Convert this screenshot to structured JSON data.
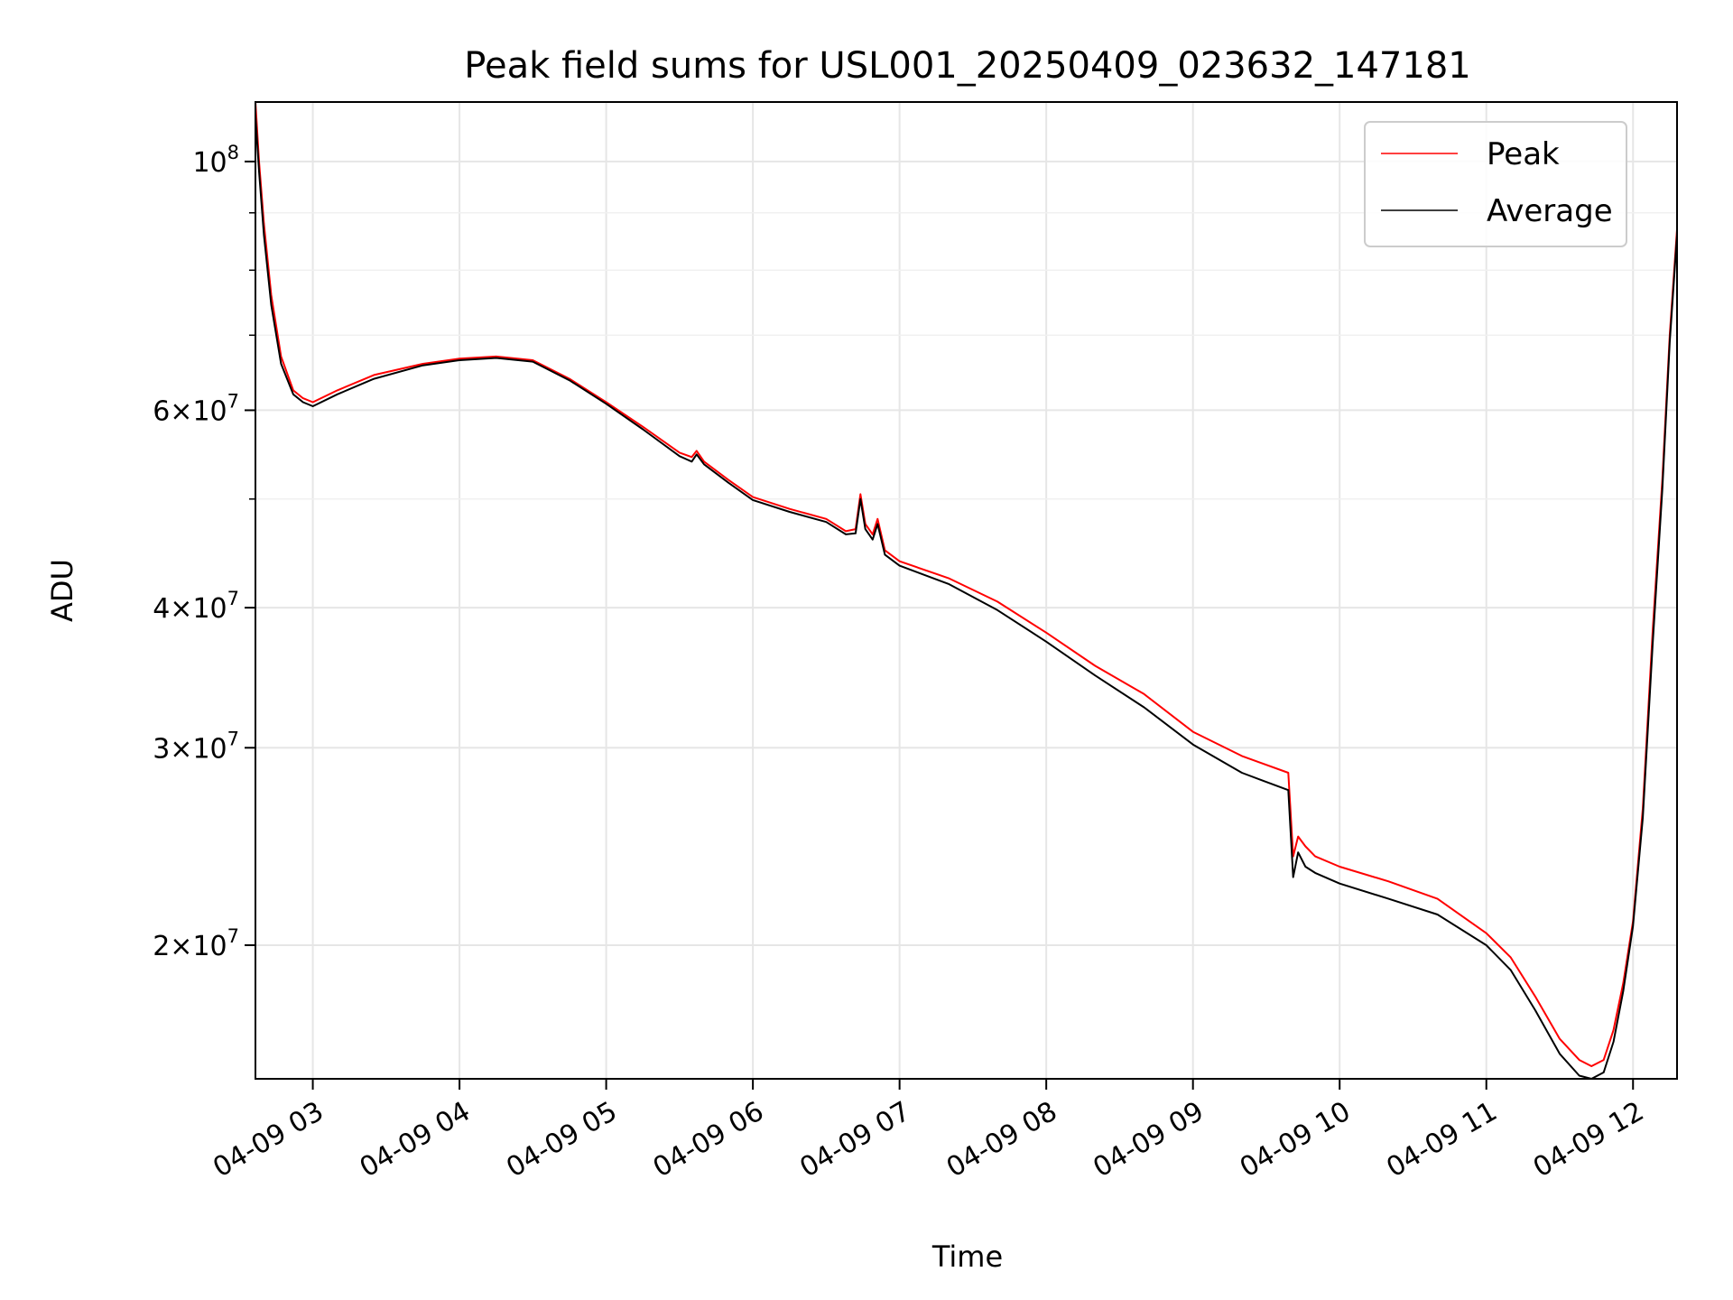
{
  "chart_data": {
    "type": "line",
    "title": "Peak field sums for USL001_20250409_023632_147181",
    "xlabel": "Time",
    "ylabel": "ADU",
    "yscale": "log",
    "xlim": [
      "2025-04-09T02:36:32",
      "2025-04-09T12:18:00"
    ],
    "ylim": [
      15200000,
      113000000
    ],
    "grid": true,
    "legend_position": "top-right",
    "x_tick_labels": [
      "04-09 03",
      "04-09 04",
      "04-09 05",
      "04-09 06",
      "04-09 07",
      "04-09 08",
      "04-09 09",
      "04-09 10",
      "04-09 11",
      "04-09 12"
    ],
    "x_ticks": [
      "2025-04-09T03:00",
      "2025-04-09T04:00",
      "2025-04-09T05:00",
      "2025-04-09T06:00",
      "2025-04-09T07:00",
      "2025-04-09T08:00",
      "2025-04-09T09:00",
      "2025-04-09T10:00",
      "2025-04-09T11:00",
      "2025-04-09T12:00"
    ],
    "y_ticks": [
      {
        "value": 100000000,
        "mantissa": "",
        "exponent": "8"
      },
      {
        "value": 60000000,
        "mantissa": "6",
        "exponent": "7"
      },
      {
        "value": 40000000,
        "mantissa": "4",
        "exponent": "7"
      },
      {
        "value": 30000000,
        "mantissa": "3",
        "exponent": "7"
      },
      {
        "value": 20000000,
        "mantissa": "2",
        "exponent": "7"
      }
    ],
    "y_minor_ticks": [
      90000000,
      80000000,
      70000000,
      50000000
    ],
    "series": [
      {
        "name": "Peak",
        "color": "#ff0000",
        "x": [
          "2025-04-09T02:36:32",
          "2025-04-09T02:38:00",
          "2025-04-09T02:40:00",
          "2025-04-09T02:43:00",
          "2025-04-09T02:47:00",
          "2025-04-09T02:52:00",
          "2025-04-09T02:56:00",
          "2025-04-09T03:00:00",
          "2025-04-09T03:10:00",
          "2025-04-09T03:25:00",
          "2025-04-09T03:45:00",
          "2025-04-09T04:00:00",
          "2025-04-09T04:15:00",
          "2025-04-09T04:30:00",
          "2025-04-09T04:45:00",
          "2025-04-09T05:00:00",
          "2025-04-09T05:15:00",
          "2025-04-09T05:30:00",
          "2025-04-09T05:35:00",
          "2025-04-09T05:37:00",
          "2025-04-09T05:40:00",
          "2025-04-09T05:50:00",
          "2025-04-09T06:00:00",
          "2025-04-09T06:15:00",
          "2025-04-09T06:30:00",
          "2025-04-09T06:38:00",
          "2025-04-09T06:42:00",
          "2025-04-09T06:44:00",
          "2025-04-09T06:46:00",
          "2025-04-09T06:49:00",
          "2025-04-09T06:51:00",
          "2025-04-09T06:54:00",
          "2025-04-09T07:00:00",
          "2025-04-09T07:20:00",
          "2025-04-09T07:40:00",
          "2025-04-09T08:00:00",
          "2025-04-09T08:20:00",
          "2025-04-09T08:40:00",
          "2025-04-09T09:00:00",
          "2025-04-09T09:20:00",
          "2025-04-09T09:39:00",
          "2025-04-09T09:41:00",
          "2025-04-09T09:43:00",
          "2025-04-09T09:46:00",
          "2025-04-09T09:50:00",
          "2025-04-09T10:00:00",
          "2025-04-09T10:20:00",
          "2025-04-09T10:40:00",
          "2025-04-09T11:00:00",
          "2025-04-09T11:10:00",
          "2025-04-09T11:20:00",
          "2025-04-09T11:30:00",
          "2025-04-09T11:38:00",
          "2025-04-09T11:43:00",
          "2025-04-09T11:48:00",
          "2025-04-09T11:52:00",
          "2025-04-09T11:56:00",
          "2025-04-09T12:00:00",
          "2025-04-09T12:04:00",
          "2025-04-09T12:08:00",
          "2025-04-09T12:12:00",
          "2025-04-09T12:15:00",
          "2025-04-09T12:18:00"
        ],
        "y": [
          113000000,
          100000000,
          88000000,
          76000000,
          67000000,
          62500000,
          61500000,
          61000000,
          62500000,
          64500000,
          66000000,
          66700000,
          67000000,
          66500000,
          64000000,
          61000000,
          58000000,
          55000000,
          54500000,
          55200000,
          54000000,
          52000000,
          50200000,
          49000000,
          48000000,
          46800000,
          47000000,
          50500000,
          47500000,
          46500000,
          48000000,
          45000000,
          44000000,
          42500000,
          40500000,
          38000000,
          35500000,
          33500000,
          31000000,
          29500000,
          28500000,
          24000000,
          25000000,
          24500000,
          24000000,
          23500000,
          22800000,
          22000000,
          20500000,
          19500000,
          18000000,
          16500000,
          15800000,
          15600000,
          15800000,
          16800000,
          18500000,
          21000000,
          26500000,
          38000000,
          52000000,
          70000000,
          87000000
        ]
      },
      {
        "name": "Average",
        "color": "#000000",
        "x": [
          "2025-04-09T02:36:32",
          "2025-04-09T02:38:00",
          "2025-04-09T02:40:00",
          "2025-04-09T02:43:00",
          "2025-04-09T02:47:00",
          "2025-04-09T02:52:00",
          "2025-04-09T02:56:00",
          "2025-04-09T03:00:00",
          "2025-04-09T03:10:00",
          "2025-04-09T03:25:00",
          "2025-04-09T03:45:00",
          "2025-04-09T04:00:00",
          "2025-04-09T04:15:00",
          "2025-04-09T04:30:00",
          "2025-04-09T04:45:00",
          "2025-04-09T05:00:00",
          "2025-04-09T05:15:00",
          "2025-04-09T05:30:00",
          "2025-04-09T05:35:00",
          "2025-04-09T05:37:00",
          "2025-04-09T05:40:00",
          "2025-04-09T05:50:00",
          "2025-04-09T06:00:00",
          "2025-04-09T06:15:00",
          "2025-04-09T06:30:00",
          "2025-04-09T06:38:00",
          "2025-04-09T06:42:00",
          "2025-04-09T06:44:00",
          "2025-04-09T06:46:00",
          "2025-04-09T06:49:00",
          "2025-04-09T06:51:00",
          "2025-04-09T06:54:00",
          "2025-04-09T07:00:00",
          "2025-04-09T07:20:00",
          "2025-04-09T07:40:00",
          "2025-04-09T08:00:00",
          "2025-04-09T08:20:00",
          "2025-04-09T08:40:00",
          "2025-04-09T09:00:00",
          "2025-04-09T09:20:00",
          "2025-04-09T09:39:00",
          "2025-04-09T09:41:00",
          "2025-04-09T09:43:00",
          "2025-04-09T09:46:00",
          "2025-04-09T09:50:00",
          "2025-04-09T10:00:00",
          "2025-04-09T10:20:00",
          "2025-04-09T10:40:00",
          "2025-04-09T11:00:00",
          "2025-04-09T11:10:00",
          "2025-04-09T11:20:00",
          "2025-04-09T11:30:00",
          "2025-04-09T11:38:00",
          "2025-04-09T11:43:00",
          "2025-04-09T11:48:00",
          "2025-04-09T11:52:00",
          "2025-04-09T11:56:00",
          "2025-04-09T12:00:00",
          "2025-04-09T12:04:00",
          "2025-04-09T12:08:00",
          "2025-04-09T12:12:00",
          "2025-04-09T12:15:00",
          "2025-04-09T12:18:00"
        ],
        "y": [
          110000000,
          98000000,
          86000000,
          74500000,
          66000000,
          62000000,
          61000000,
          60500000,
          62000000,
          64000000,
          65800000,
          66500000,
          66800000,
          66300000,
          63800000,
          60800000,
          57700000,
          54600000,
          54000000,
          54800000,
          53700000,
          51700000,
          49900000,
          48700000,
          47700000,
          46500000,
          46600000,
          50000000,
          47000000,
          46000000,
          47500000,
          44600000,
          43600000,
          42000000,
          39800000,
          37300000,
          34800000,
          32600000,
          30200000,
          28500000,
          27500000,
          23000000,
          24200000,
          23500000,
          23200000,
          22700000,
          22000000,
          21300000,
          20000000,
          19000000,
          17500000,
          16000000,
          15300000,
          15200000,
          15400000,
          16400000,
          18200000,
          20800000,
          26000000,
          37000000,
          51000000,
          69000000,
          86000000
        ]
      }
    ]
  }
}
